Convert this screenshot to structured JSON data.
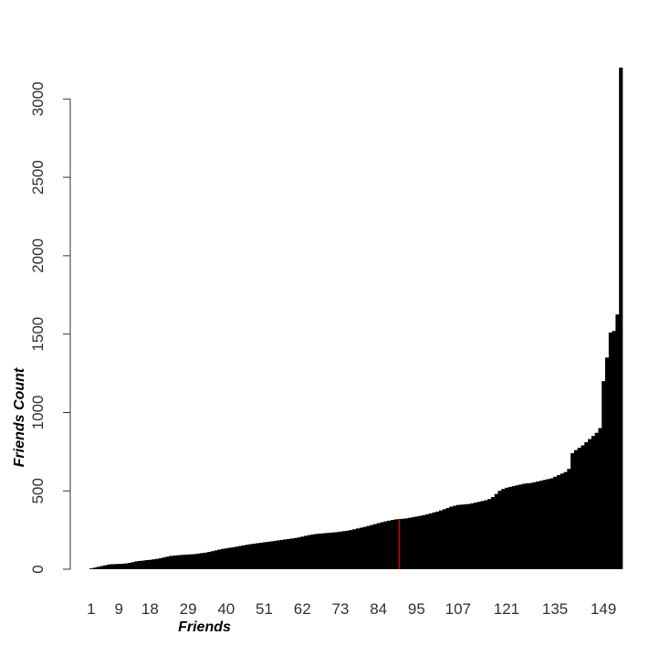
{
  "chart_data": {
    "type": "bar",
    "xlabel": "Friends",
    "ylabel": "Friends Count",
    "ylim": [
      0,
      3200
    ],
    "y_ticks": [
      0,
      500,
      1000,
      1500,
      2000,
      2500,
      3000
    ],
    "x_ticks": [
      1,
      9,
      18,
      29,
      40,
      51,
      62,
      73,
      84,
      95,
      107,
      121,
      135,
      149
    ],
    "bar_color": "#000000",
    "marker_color": "#cc0000",
    "marker_index": 90,
    "values": [
      5,
      10,
      15,
      20,
      25,
      30,
      32,
      33,
      34,
      35,
      37,
      40,
      45,
      50,
      53,
      55,
      58,
      60,
      63,
      66,
      70,
      75,
      80,
      85,
      87,
      89,
      91,
      93,
      94,
      95,
      97,
      100,
      103,
      106,
      110,
      115,
      120,
      125,
      130,
      133,
      137,
      140,
      144,
      148,
      152,
      156,
      160,
      163,
      166,
      169,
      172,
      175,
      178,
      181,
      184,
      187,
      190,
      193,
      196,
      199,
      203,
      208,
      213,
      218,
      222,
      225,
      227,
      229,
      231,
      233,
      235,
      237,
      240,
      243,
      246,
      250,
      255,
      260,
      265,
      270,
      276,
      282,
      288,
      294,
      300,
      305,
      310,
      314,
      318,
      320,
      322,
      324,
      328,
      332,
      336,
      340,
      345,
      350,
      356,
      362,
      368,
      375,
      383,
      391,
      399,
      405,
      410,
      412,
      414,
      416,
      420,
      425,
      430,
      435,
      440,
      448,
      460,
      480,
      500,
      512,
      520,
      525,
      530,
      535,
      540,
      545,
      548,
      550,
      555,
      560,
      565,
      570,
      575,
      580,
      590,
      600,
      610,
      620,
      640,
      740,
      760,
      775,
      790,
      810,
      830,
      850,
      870,
      900,
      1200,
      1350,
      1510,
      1520,
      1625,
      3200
    ]
  }
}
